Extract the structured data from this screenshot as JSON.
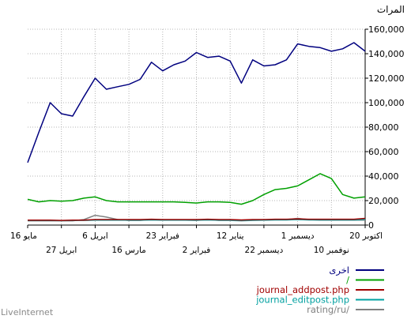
{
  "chart_data": {
    "type": "line",
    "ylabel": "المرات",
    "ylim": [
      0,
      160000
    ],
    "yticks": [
      "0",
      "20,000",
      "40,000",
      "60,000",
      "80,000",
      "100,000",
      "120,000",
      "140,000",
      "160,000"
    ],
    "xticks_upper": [
      "20 اكتوبر",
      "1 ديسمبر",
      "12 يناير",
      "23 فبراير",
      "6 ابريل",
      "16 مايو"
    ],
    "xticks_lower": [
      "10 نوفمبر",
      "22 ديسمبر",
      "2 فبراير",
      "16 مارس",
      "27 ابريل"
    ],
    "x_dir": "right-to-left",
    "grid": true,
    "legend_position": "bottom-right",
    "series": [
      {
        "name": "اخرى",
        "color": "#00007f",
        "values": [
          51000,
          76000,
          100000,
          91000,
          89000,
          105000,
          120000,
          111000,
          113000,
          115000,
          119000,
          133000,
          126000,
          131000,
          134000,
          141000,
          137000,
          138000,
          134000,
          116000,
          135000,
          130000,
          131000,
          135000,
          148000,
          146000,
          145000,
          142000,
          144000,
          149000,
          142000
        ]
      },
      {
        "name": "/",
        "color": "#00a000",
        "values": [
          21000,
          19000,
          20000,
          19500,
          20000,
          22000,
          23000,
          20000,
          19000,
          19000,
          19000,
          19000,
          19000,
          19000,
          18500,
          18000,
          19000,
          19000,
          18500,
          17000,
          20000,
          25000,
          29000,
          30000,
          32000,
          37000,
          42000,
          38000,
          25000,
          22000,
          23000
        ]
      },
      {
        "name": "journal_addpost.php",
        "color": "#a00000",
        "values": [
          4000,
          4000,
          4000,
          3800,
          4000,
          4000,
          4500,
          4500,
          4500,
          4500,
          4500,
          4800,
          4500,
          4500,
          4500,
          4500,
          4800,
          4500,
          4500,
          4200,
          4500,
          4500,
          4800,
          4800,
          5000,
          4800,
          4800,
          4800,
          4800,
          4800,
          5500
        ]
      },
      {
        "name": "journal_editpost.php",
        "color": "#00a0a0",
        "values": [
          3800,
          3800,
          3800,
          3600,
          3800,
          3800,
          4000,
          4000,
          4000,
          4000,
          4000,
          4200,
          4000,
          4000,
          4000,
          4000,
          4200,
          4000,
          4000,
          3800,
          4000,
          4000,
          4200,
          4200,
          4500,
          4200,
          4200,
          4200,
          4200,
          4200,
          4800
        ]
      },
      {
        "name": "rating/ru/",
        "color": "#808080",
        "values": [
          3500,
          3500,
          3500,
          3500,
          3500,
          4500,
          8000,
          6500,
          4500,
          3800,
          3800,
          4500,
          4000,
          4000,
          4000,
          3800,
          4500,
          3800,
          3800,
          3500,
          3800,
          4000,
          4500,
          4500,
          5500,
          4500,
          4000,
          4000,
          4000,
          4000,
          4000
        ]
      }
    ]
  },
  "footer": {
    "brand": "LiveInternet"
  }
}
